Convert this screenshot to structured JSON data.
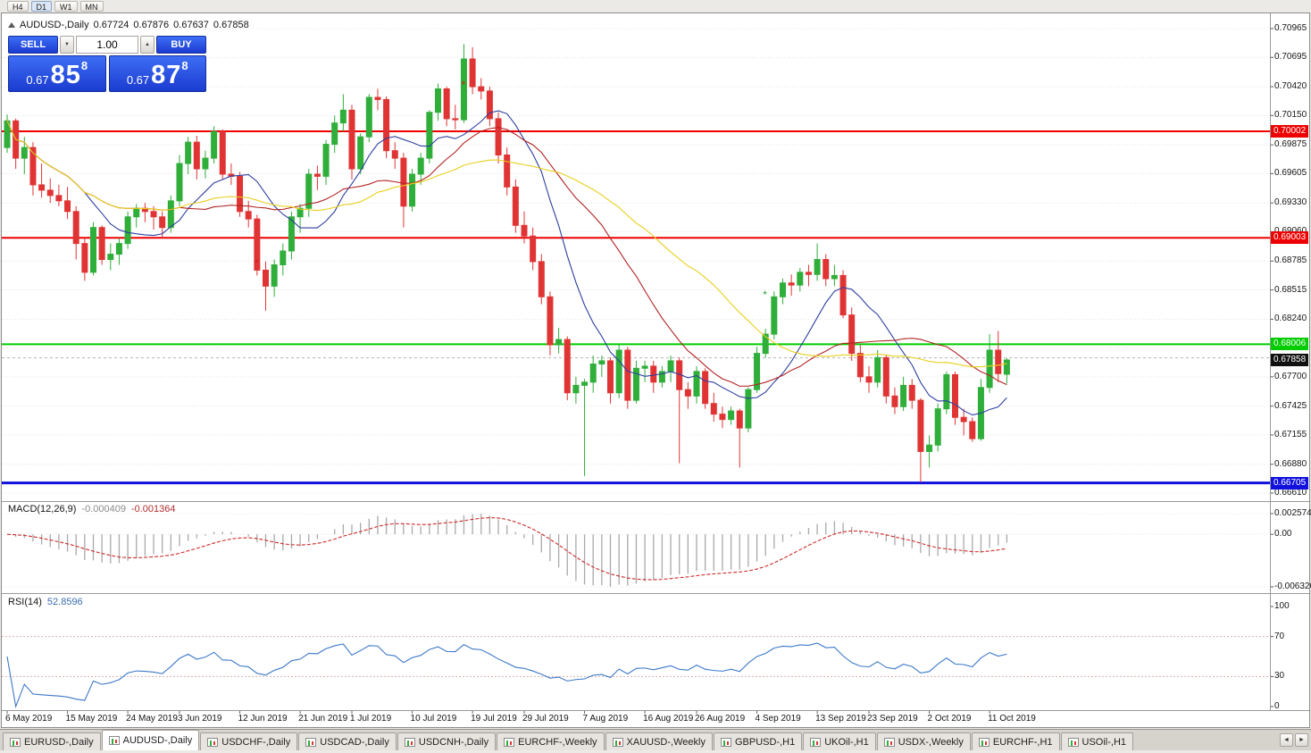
{
  "timeframe_toolbar": {
    "items": [
      {
        "label": "H4",
        "active": false
      },
      {
        "label": "D1",
        "active": true
      },
      {
        "label": "W1",
        "active": false
      },
      {
        "label": "MN",
        "active": false
      }
    ]
  },
  "chart_header": {
    "symbol": "AUDUSD-,Daily",
    "open": "0.67724",
    "high": "0.67876",
    "low": "0.67637",
    "close": "0.67858"
  },
  "one_click": {
    "sell_label": "SELL",
    "buy_label": "BUY",
    "volume": "1.00",
    "down_glyph": "▼",
    "up_glyph": "▲",
    "sell_price": {
      "prefix": "0.67",
      "big": "85",
      "sup": "8"
    },
    "buy_price": {
      "prefix": "0.67",
      "big": "87",
      "sup": "8"
    }
  },
  "tab_bar": {
    "scroll_left": "◄",
    "scroll_right": "►",
    "tabs": [
      {
        "label": "EURUSD-,Daily",
        "active": false
      },
      {
        "label": "AUDUSD-,Daily",
        "active": true
      },
      {
        "label": "USDCHF-,Daily",
        "active": false
      },
      {
        "label": "USDCAD-,Daily",
        "active": false
      },
      {
        "label": "USDCNH-,Daily",
        "active": false
      },
      {
        "label": "EURCHF-,Weekly",
        "active": false
      },
      {
        "label": "XAUUSD-,Weekly",
        "active": false
      },
      {
        "label": "GBPUSD-,H1",
        "active": false
      },
      {
        "label": "UKOil-,H1",
        "active": false
      },
      {
        "label": "USDX-,Weekly",
        "active": false
      },
      {
        "label": "EURCHF-,H1",
        "active": false
      },
      {
        "label": "USOil-,H1",
        "active": false
      }
    ]
  },
  "chart_data": {
    "type": "candlestick",
    "symbol": "AUDUSD-",
    "timeframe": "Daily",
    "colors": {
      "bull": "#2fae3a",
      "bear": "#e03434"
    },
    "price_ticks": [
      "0.70965",
      "0.70695",
      "0.70420",
      "0.70150",
      "0.69875",
      "0.69605",
      "0.69330",
      "0.69060",
      "0.68785",
      "0.68515",
      "0.68240",
      "0.67970",
      "0.67700",
      "0.67425",
      "0.67155",
      "0.66880",
      "0.66610"
    ],
    "hlines": [
      {
        "price": 0.70002,
        "label": "0.70002",
        "color": "#ee0000",
        "width": 2
      },
      {
        "price": 0.69003,
        "label": "0.69003",
        "color": "#ee0000",
        "width": 2
      },
      {
        "price": 0.68006,
        "label": "0.68006",
        "color": "#00cc00",
        "width": 2
      },
      {
        "price": 0.66705,
        "label": "0.66705",
        "color": "#1111dd",
        "width": 3
      }
    ],
    "ask_line": 0.67878,
    "current_price": "0.67858",
    "overlays": [
      {
        "name": "ma-fast",
        "period": 10,
        "color": "#2f3f9f"
      },
      {
        "name": "ma-mid",
        "period": 21,
        "color": "#b22222"
      },
      {
        "name": "ma-slow",
        "period": 34,
        "color": "#e8d01c"
      }
    ],
    "markers": [
      {
        "i": 29,
        "price": 0.6876,
        "color": "#cc2222",
        "glyph": "*"
      },
      {
        "i": 53,
        "price": 0.7043,
        "color": "#cc2222",
        "glyph": "*"
      },
      {
        "i": 88,
        "price": 0.6846,
        "color": "#2a9d3a",
        "glyph": "*"
      }
    ],
    "macd": {
      "label": "MACD(12,26,9)",
      "value_main": "-0.000409",
      "value_signal": "-0.001364",
      "axis": [
        "0.002574",
        "0.00",
        "-0.006326"
      ],
      "fast": 12,
      "slow": 26,
      "signal": 9
    },
    "rsi": {
      "label": "RSI(14)",
      "value": "52.8596",
      "axis": [
        "100",
        "70",
        "30",
        "0"
      ],
      "levels": [
        70,
        30
      ],
      "period": 14,
      "color": "#3c78c8"
    },
    "x_labels": [
      {
        "i": 0,
        "label": "6 May 2019"
      },
      {
        "i": 7,
        "label": "15 May 2019"
      },
      {
        "i": 14,
        "label": "24 May 2019"
      },
      {
        "i": 20,
        "label": "3 Jun 2019"
      },
      {
        "i": 27,
        "label": "12 Jun 2019"
      },
      {
        "i": 34,
        "label": "21 Jun 2019"
      },
      {
        "i": 40,
        "label": "1 Jul 2019"
      },
      {
        "i": 47,
        "label": "10 Jul 2019"
      },
      {
        "i": 54,
        "label": "19 Jul 2019"
      },
      {
        "i": 60,
        "label": "29 Jul 2019"
      },
      {
        "i": 67,
        "label": "7 Aug 2019"
      },
      {
        "i": 74,
        "label": "16 Aug 2019"
      },
      {
        "i": 80,
        "label": "26 Aug 2019"
      },
      {
        "i": 87,
        "label": "4 Sep 2019"
      },
      {
        "i": 94,
        "label": "13 Sep 2019"
      },
      {
        "i": 100,
        "label": "23 Sep 2019"
      },
      {
        "i": 107,
        "label": "2 Oct 2019"
      },
      {
        "i": 114,
        "label": "11 Oct 2019"
      }
    ],
    "candles": [
      [
        0.6985,
        0.7016,
        0.698,
        0.701
      ],
      [
        0.701,
        0.7012,
        0.6965,
        0.6975
      ],
      [
        0.6975,
        0.6995,
        0.696,
        0.6985
      ],
      [
        0.6985,
        0.699,
        0.694,
        0.695
      ],
      [
        0.695,
        0.697,
        0.6938,
        0.6945
      ],
      [
        0.6945,
        0.6956,
        0.6933,
        0.694
      ],
      [
        0.694,
        0.695,
        0.693,
        0.6935
      ],
      [
        0.6935,
        0.6948,
        0.6918,
        0.6925
      ],
      [
        0.6925,
        0.693,
        0.688,
        0.6895
      ],
      [
        0.6895,
        0.69,
        0.686,
        0.6868
      ],
      [
        0.6868,
        0.6915,
        0.6865,
        0.691
      ],
      [
        0.691,
        0.6912,
        0.6875,
        0.688
      ],
      [
        0.688,
        0.6895,
        0.687,
        0.6885
      ],
      [
        0.6885,
        0.69,
        0.6875,
        0.6895
      ],
      [
        0.6895,
        0.6925,
        0.689,
        0.692
      ],
      [
        0.692,
        0.6932,
        0.691,
        0.6928
      ],
      [
        0.6928,
        0.6933,
        0.6915,
        0.6925
      ],
      [
        0.6925,
        0.693,
        0.6908,
        0.692
      ],
      [
        0.692,
        0.6925,
        0.69,
        0.691
      ],
      [
        0.691,
        0.694,
        0.6905,
        0.6935
      ],
      [
        0.6935,
        0.6978,
        0.693,
        0.697
      ],
      [
        0.697,
        0.6995,
        0.696,
        0.699
      ],
      [
        0.699,
        0.6996,
        0.6955,
        0.6965
      ],
      [
        0.6965,
        0.6982,
        0.6956,
        0.6975
      ],
      [
        0.6975,
        0.7005,
        0.697,
        0.7
      ],
      [
        0.7,
        0.7002,
        0.6955,
        0.696
      ],
      [
        0.696,
        0.697,
        0.695,
        0.6958
      ],
      [
        0.6958,
        0.6962,
        0.692,
        0.6925
      ],
      [
        0.6925,
        0.6935,
        0.691,
        0.6918
      ],
      [
        0.6918,
        0.6922,
        0.6865,
        0.687
      ],
      [
        0.687,
        0.6878,
        0.6832,
        0.6855
      ],
      [
        0.6855,
        0.688,
        0.6845,
        0.6875
      ],
      [
        0.6875,
        0.6895,
        0.6865,
        0.6888
      ],
      [
        0.6888,
        0.6925,
        0.688,
        0.692
      ],
      [
        0.692,
        0.6932,
        0.6905,
        0.6928
      ],
      [
        0.6928,
        0.6965,
        0.692,
        0.696
      ],
      [
        0.696,
        0.6968,
        0.6945,
        0.6958
      ],
      [
        0.6958,
        0.6992,
        0.695,
        0.6988
      ],
      [
        0.6988,
        0.7015,
        0.698,
        0.7008
      ],
      [
        0.7008,
        0.7035,
        0.7,
        0.702
      ],
      [
        0.702,
        0.7025,
        0.6955,
        0.6965
      ],
      [
        0.6965,
        0.6998,
        0.696,
        0.6995
      ],
      [
        0.6995,
        0.7035,
        0.699,
        0.7032
      ],
      [
        0.7032,
        0.704,
        0.702,
        0.703
      ],
      [
        0.703,
        0.7033,
        0.6975,
        0.6982
      ],
      [
        0.6982,
        0.699,
        0.6965,
        0.6975
      ],
      [
        0.6975,
        0.698,
        0.691,
        0.693
      ],
      [
        0.693,
        0.6965,
        0.6925,
        0.696
      ],
      [
        0.696,
        0.698,
        0.695,
        0.6975
      ],
      [
        0.6975,
        0.702,
        0.697,
        0.7018
      ],
      [
        0.7018,
        0.7045,
        0.701,
        0.704
      ],
      [
        0.704,
        0.7042,
        0.7005,
        0.7012
      ],
      [
        0.7012,
        0.7025,
        0.7002,
        0.7011
      ],
      [
        0.7011,
        0.7082,
        0.7008,
        0.7068
      ],
      [
        0.7068,
        0.7079,
        0.7035,
        0.7042
      ],
      [
        0.7042,
        0.705,
        0.703,
        0.7038
      ],
      [
        0.7038,
        0.7042,
        0.7005,
        0.7012
      ],
      [
        0.7012,
        0.7018,
        0.697,
        0.6978
      ],
      [
        0.6978,
        0.6985,
        0.694,
        0.6948
      ],
      [
        0.6948,
        0.6955,
        0.6905,
        0.6912
      ],
      [
        0.6912,
        0.6925,
        0.6895,
        0.6902
      ],
      [
        0.6902,
        0.691,
        0.687,
        0.6878
      ],
      [
        0.6878,
        0.6885,
        0.6838,
        0.6845
      ],
      [
        0.6845,
        0.685,
        0.679,
        0.68
      ],
      [
        0.68,
        0.6816,
        0.6792,
        0.6805
      ],
      [
        0.6805,
        0.6808,
        0.6748,
        0.6755
      ],
      [
        0.6755,
        0.677,
        0.6745,
        0.6762
      ],
      [
        0.6762,
        0.6768,
        0.6677,
        0.6765
      ],
      [
        0.6765,
        0.679,
        0.6755,
        0.6782
      ],
      [
        0.6782,
        0.679,
        0.677,
        0.6785
      ],
      [
        0.6785,
        0.6788,
        0.6745,
        0.6755
      ],
      [
        0.6755,
        0.68,
        0.675,
        0.6795
      ],
      [
        0.6795,
        0.6798,
        0.674,
        0.6748
      ],
      [
        0.6748,
        0.6785,
        0.6745,
        0.6778
      ],
      [
        0.6778,
        0.6785,
        0.6765,
        0.678
      ],
      [
        0.678,
        0.6785,
        0.6755,
        0.6765
      ],
      [
        0.6765,
        0.678,
        0.676,
        0.6775
      ],
      [
        0.6775,
        0.679,
        0.6765,
        0.6785
      ],
      [
        0.6785,
        0.6788,
        0.6689,
        0.6758
      ],
      [
        0.6758,
        0.6765,
        0.674,
        0.6752
      ],
      [
        0.6752,
        0.678,
        0.6745,
        0.6775
      ],
      [
        0.6775,
        0.6778,
        0.674,
        0.6745
      ],
      [
        0.6745,
        0.6755,
        0.6728,
        0.6735
      ],
      [
        0.6735,
        0.6742,
        0.6722,
        0.673
      ],
      [
        0.673,
        0.6742,
        0.6725,
        0.6738
      ],
      [
        0.6738,
        0.674,
        0.6685,
        0.6722
      ],
      [
        0.6722,
        0.676,
        0.6718,
        0.6758
      ],
      [
        0.6758,
        0.6798,
        0.6755,
        0.6792
      ],
      [
        0.6792,
        0.6815,
        0.6788,
        0.681
      ],
      [
        0.681,
        0.685,
        0.6805,
        0.6845
      ],
      [
        0.6845,
        0.6862,
        0.6838,
        0.6858
      ],
      [
        0.6858,
        0.6866,
        0.6846,
        0.6856
      ],
      [
        0.6856,
        0.6872,
        0.685,
        0.6868
      ],
      [
        0.6868,
        0.6875,
        0.6855,
        0.6866
      ],
      [
        0.6866,
        0.6895,
        0.686,
        0.688
      ],
      [
        0.688,
        0.6885,
        0.6855,
        0.6862
      ],
      [
        0.6862,
        0.6875,
        0.6855,
        0.6865
      ],
      [
        0.6865,
        0.687,
        0.6825,
        0.6828
      ],
      [
        0.6828,
        0.6835,
        0.6785,
        0.6792
      ],
      [
        0.6792,
        0.68,
        0.6765,
        0.677
      ],
      [
        0.677,
        0.678,
        0.6755,
        0.6765
      ],
      [
        0.6765,
        0.6795,
        0.676,
        0.6788
      ],
      [
        0.6788,
        0.679,
        0.6745,
        0.6752
      ],
      [
        0.6752,
        0.676,
        0.6735,
        0.6742
      ],
      [
        0.6742,
        0.677,
        0.6738,
        0.6762
      ],
      [
        0.6762,
        0.6768,
        0.674,
        0.6748
      ],
      [
        0.6748,
        0.675,
        0.6671,
        0.67
      ],
      [
        0.67,
        0.6715,
        0.6685,
        0.6706
      ],
      [
        0.6706,
        0.6745,
        0.67,
        0.674
      ],
      [
        0.674,
        0.6775,
        0.6735,
        0.6772
      ],
      [
        0.6772,
        0.6775,
        0.6725,
        0.6732
      ],
      [
        0.6732,
        0.674,
        0.6715,
        0.6728
      ],
      [
        0.6728,
        0.6732,
        0.6709,
        0.6712
      ],
      [
        0.6712,
        0.6768,
        0.671,
        0.676
      ],
      [
        0.676,
        0.681,
        0.6755,
        0.6795
      ],
      [
        0.6795,
        0.6813,
        0.6765,
        0.6773
      ],
      [
        0.67724,
        0.67876,
        0.67637,
        0.67858
      ]
    ]
  }
}
